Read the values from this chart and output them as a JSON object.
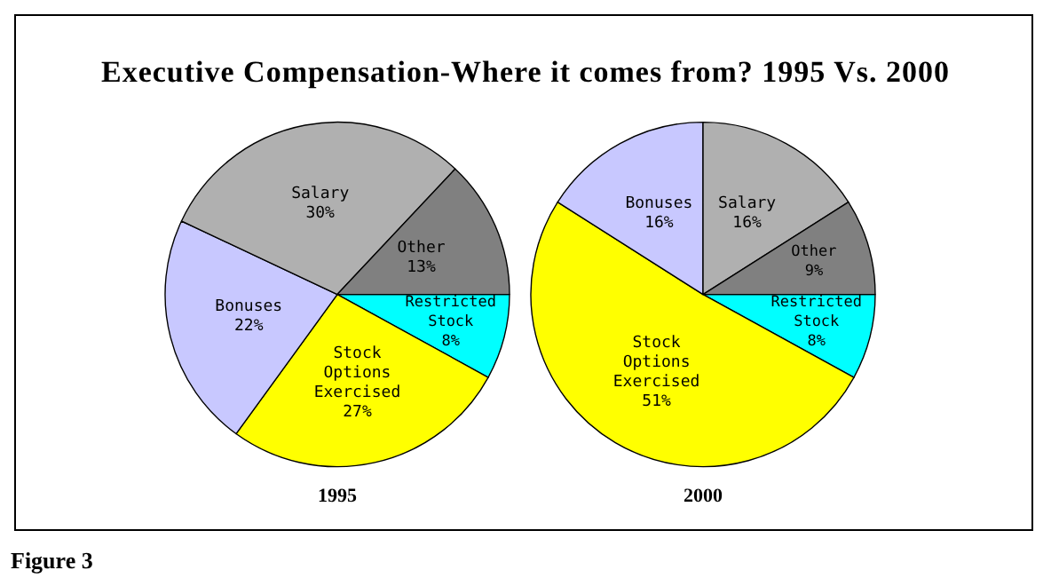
{
  "chart_data": [
    {
      "type": "other",
      "title": "Executive Compensation-Where it comes from? 1995 Vs. 2000",
      "annotations": [
        "Figure 3"
      ]
    },
    {
      "type": "pie",
      "title": "1995",
      "categories": [
        "Restricted Stock",
        "Stock Options Exercised",
        "Bonuses",
        "Salary",
        "Other"
      ],
      "values": [
        8,
        27,
        22,
        30,
        13
      ],
      "value_labels": [
        "8%",
        "27%",
        "22%",
        "30%",
        "13%"
      ],
      "colors": [
        "#00ffff",
        "#ffff00",
        "#c8c8ff",
        "#b0b0b0",
        "#808080"
      ]
    },
    {
      "type": "pie",
      "title": "2000",
      "categories": [
        "Restricted Stock",
        "Stock Options Exercised",
        "Bonuses",
        "Salary",
        "Other"
      ],
      "values": [
        8,
        51,
        16,
        16,
        9
      ],
      "value_labels": [
        "8%",
        "51%",
        "16%",
        "16%",
        "9%"
      ],
      "colors": [
        "#00ffff",
        "#ffff00",
        "#c8c8ff",
        "#b0b0b0",
        "#808080"
      ]
    }
  ]
}
